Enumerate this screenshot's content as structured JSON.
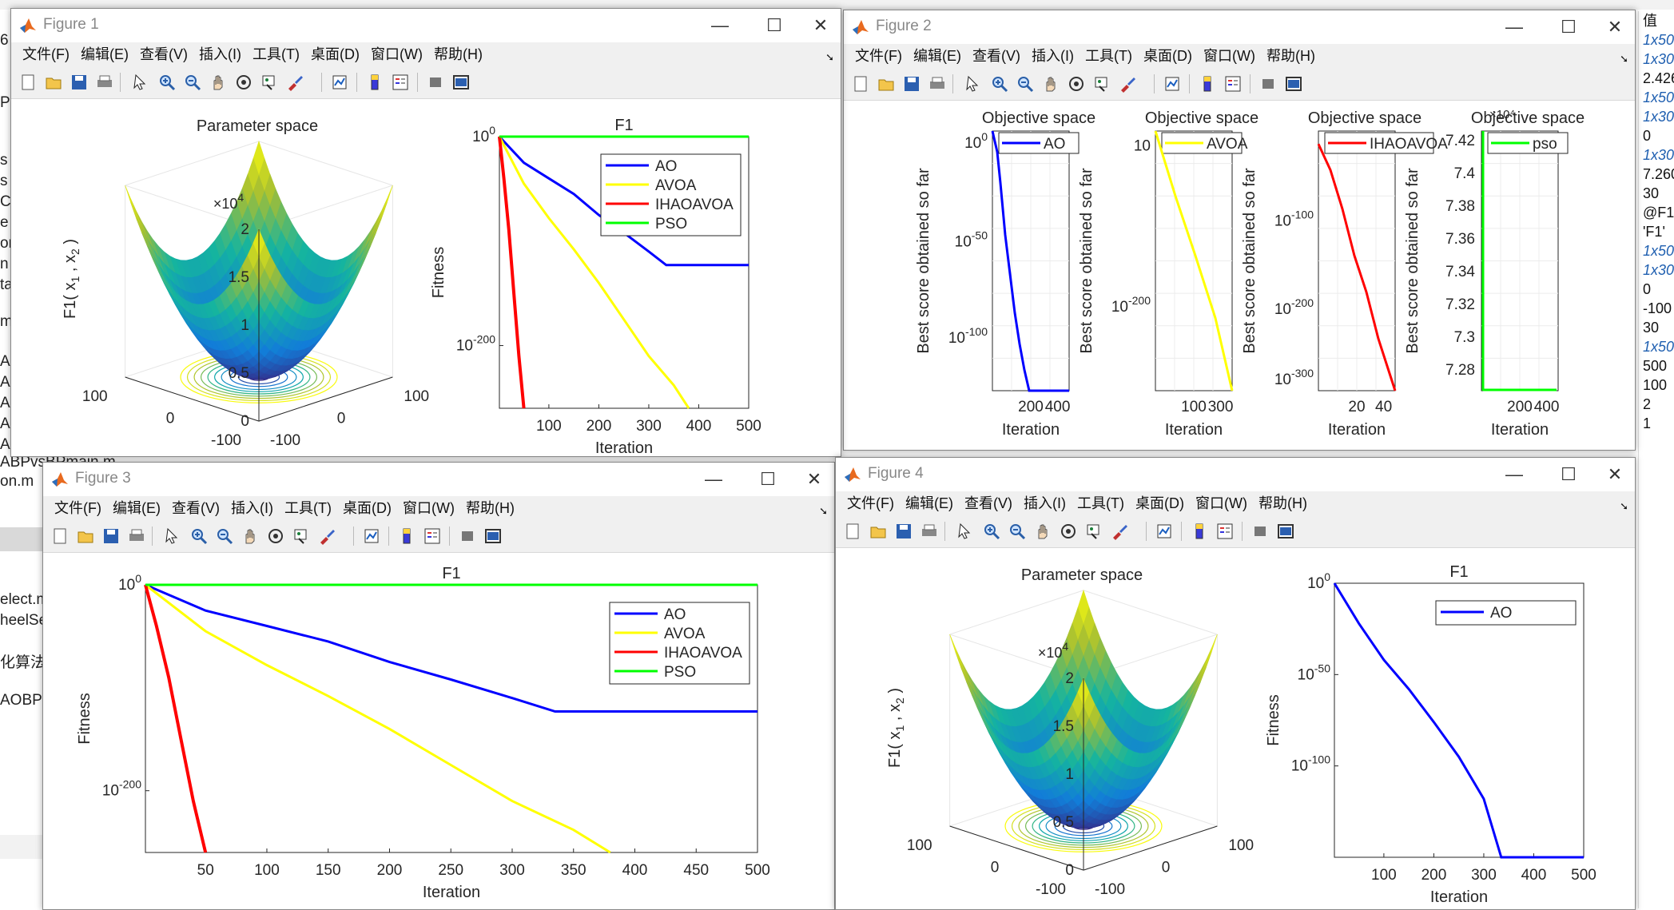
{
  "background": {
    "left_fragments": [
      "6",
      "Pr",
      "s",
      "s",
      "C",
      "e",
      "or",
      "n",
      "ta",
      "m",
      "A",
      "A",
      "A",
      "A",
      "A",
      "ABPvsBPmain.m",
      "on.m",
      "elect.m",
      "heelSe",
      "化算法",
      "AOBP"
    ],
    "value_panel_header": "值",
    "values": [
      "1x50",
      "1x30",
      "2.426",
      "1x50",
      "1x30",
      "0",
      "1x30",
      "7.260",
      "30",
      "@F1",
      "'F1'",
      "1x50",
      "1x30",
      "0",
      "-100",
      "30",
      "1x50",
      "500",
      "100",
      "2",
      "1"
    ]
  },
  "menu": [
    "文件(F)",
    "编辑(E)",
    "查看(V)",
    "插入(I)",
    "工具(T)",
    "桌面(D)",
    "窗口(W)",
    "帮助(H)"
  ],
  "colors": {
    "AO": "#0000ff",
    "AVOA": "#ffff00",
    "IHAOAVOA": "#ff0000",
    "PSO": "#00ff00"
  },
  "windows": {
    "fig1": {
      "title": "Figure 1",
      "surface": {
        "title": "Parameter space",
        "zlabel": "F1( x",
        "zlabel_sub1": "1",
        "zlabel_sep": " , x",
        "zlabel_sub2": "2",
        "zlabel_end": " )",
        "xlabel": "x",
        "xlabel_sub": "1",
        "ylabel": "x",
        "ylabel_sub": "2",
        "exponent_base": "×10",
        "exponent_power": "4",
        "zticks": [
          "2",
          "1.5",
          "1",
          "0.5",
          "0"
        ],
        "xticks": [
          "100",
          "0",
          "-100"
        ],
        "yticks": [
          "100",
          "0",
          "-100"
        ]
      },
      "convergence": {
        "title": "F1",
        "xlabel": "Iteration",
        "ylabel": "Fitness",
        "ytick_top": {
          "base": "10",
          "exp": "0"
        },
        "ytick_mid": {
          "base": "10",
          "exp": "-200"
        },
        "xticks": [
          "100",
          "200",
          "300",
          "400",
          "500"
        ],
        "legend": [
          "AO",
          "AVOA",
          "IHAOAVOA",
          "PSO"
        ]
      }
    },
    "fig2": {
      "title": "Figure 2",
      "panels": [
        {
          "title": "Objective space",
          "legend": "AO",
          "series": "AO",
          "ylabel": "Best score obtained so far",
          "xlabel": "Iteration",
          "xticks": [
            "200",
            "400"
          ],
          "yticks": [
            {
              "base": "10",
              "exp": "0"
            },
            {
              "base": "10",
              "exp": "-50"
            },
            {
              "base": "10",
              "exp": "-100"
            }
          ]
        },
        {
          "title": "Objective space",
          "legend": "AVOA",
          "series": "AVOA",
          "ylabel": "Best score obtained so far",
          "xlabel": "Iteration",
          "xticks": [
            "100",
            "300"
          ],
          "yticks": [
            {
              "base": "10",
              "exp": ""
            },
            {
              "base": "10",
              "exp": "-200"
            }
          ]
        },
        {
          "title": "Objective space",
          "legend": "IHAOAVOA",
          "series": "IHAOAVOA",
          "ylabel": "Best score obtained so far",
          "xlabel": "Iteration",
          "xticks": [
            "20",
            "40"
          ],
          "yticks": [
            {
              "base": "10",
              "exp": "-100"
            },
            {
              "base": "10",
              "exp": "-200"
            },
            {
              "base": "10",
              "exp": "-300"
            }
          ]
        },
        {
          "title": "Objective space",
          "legend": "pso",
          "series": "PSO",
          "ylabel": "Best score obtained so far",
          "xlabel": "Iteration",
          "xticks": [
            "200",
            "400"
          ],
          "yticks": [
            "7.42",
            "7.4",
            "7.38",
            "7.36",
            "7.34",
            "7.32",
            "7.3",
            "7.28"
          ],
          "exponent": "×10⁴"
        }
      ]
    },
    "fig3": {
      "title": "Figure 3",
      "convergence": {
        "title": "F1",
        "xlabel": "Iteration",
        "ylabel": "Fitness",
        "ytick_top": {
          "base": "10",
          "exp": "0"
        },
        "ytick_mid": {
          "base": "10",
          "exp": "-200"
        },
        "xticks": [
          "50",
          "100",
          "150",
          "200",
          "250",
          "300",
          "350",
          "400",
          "450",
          "500"
        ],
        "legend": [
          "AO",
          "AVOA",
          "IHAOAVOA",
          "PSO"
        ]
      }
    },
    "fig4": {
      "title": "Figure 4",
      "surface": {
        "title": "Parameter space",
        "zlabel": "F1( x",
        "zlabel_sub1": "1",
        "zlabel_sep": " , x",
        "zlabel_sub2": "2",
        "zlabel_end": " )",
        "xlabel": "x",
        "xlabel_sub": "1",
        "ylabel": "x",
        "ylabel_sub": "2",
        "exponent_base": "×10",
        "exponent_power": "4",
        "zticks": [
          "2",
          "1.5",
          "1",
          "0.5",
          "0"
        ],
        "xticks": [
          "100",
          "0",
          "-100"
        ],
        "yticks": [
          "100",
          "0",
          "-100"
        ]
      },
      "convergence": {
        "title": "F1",
        "xlabel": "Iteration",
        "ylabel": "Fitness",
        "yticks": [
          {
            "base": "10",
            "exp": "0"
          },
          {
            "base": "10",
            "exp": "-50"
          },
          {
            "base": "10",
            "exp": "-100"
          }
        ],
        "xticks": [
          "100",
          "200",
          "300",
          "400",
          "500"
        ],
        "legend": [
          "AO"
        ]
      }
    }
  },
  "chart_data": [
    {
      "type": "line",
      "title": "F1",
      "xlabel": "Iteration",
      "ylabel": "Fitness",
      "yscale": "log10",
      "xlim": [
        1,
        500
      ],
      "ylim_log10": [
        -260,
        0
      ],
      "series": [
        {
          "name": "AO",
          "points": [
            [
              1,
              0
            ],
            [
              50,
              -25
            ],
            [
              100,
              -40
            ],
            [
              150,
              -55
            ],
            [
              200,
              -75
            ],
            [
              250,
              -92
            ],
            [
              300,
              -110
            ],
            [
              335,
              -123
            ],
            [
              500,
              -123
            ]
          ]
        },
        {
          "name": "AVOA",
          "points": [
            [
              1,
              0
            ],
            [
              50,
              -45
            ],
            [
              100,
              -78
            ],
            [
              150,
              -108
            ],
            [
              200,
              -140
            ],
            [
              250,
              -175
            ],
            [
              300,
              -210
            ],
            [
              350,
              -238
            ],
            [
              380,
              -260
            ]
          ]
        },
        {
          "name": "IHAOAVOA",
          "points": [
            [
              1,
              0
            ],
            [
              10,
              -40
            ],
            [
              20,
              -90
            ],
            [
              30,
              -150
            ],
            [
              40,
              -210
            ],
            [
              50,
              -260
            ]
          ]
        },
        {
          "name": "PSO",
          "points": [
            [
              1,
              0
            ],
            [
              500,
              0
            ]
          ]
        }
      ]
    },
    {
      "type": "line",
      "title": "F1",
      "xlabel": "Iteration",
      "ylabel": "Fitness",
      "yscale": "log10",
      "xlim": [
        1,
        500
      ],
      "ylim_log10": [
        -150,
        0
      ],
      "series": [
        {
          "name": "AO",
          "points": [
            [
              1,
              0
            ],
            [
              50,
              -22
            ],
            [
              100,
              -42
            ],
            [
              150,
              -58
            ],
            [
              200,
              -76
            ],
            [
              250,
              -95
            ],
            [
              300,
              -118
            ],
            [
              335,
              -150
            ],
            [
              500,
              -150
            ]
          ]
        }
      ]
    }
  ]
}
